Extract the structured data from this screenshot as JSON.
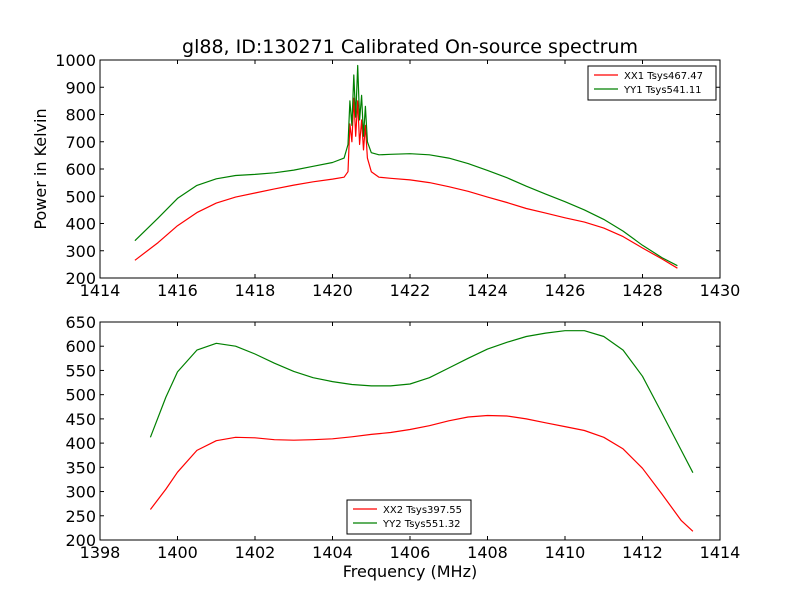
{
  "chart_data": [
    {
      "type": "line",
      "title": "gl88, ID:130271 Calibrated On-source spectrum",
      "xlabel": "",
      "ylabel": "Power in Kelvin",
      "xlim": [
        1414,
        1430
      ],
      "ylim": [
        200,
        1000
      ],
      "xticks": [
        "1414",
        "1416",
        "1418",
        "1420",
        "1422",
        "1424",
        "1426",
        "1428",
        "1430"
      ],
      "yticks": [
        "200",
        "300",
        "400",
        "500",
        "600",
        "700",
        "800",
        "900",
        "1000"
      ],
      "legend_position": "top-right",
      "series": [
        {
          "name": "XX1 Tsys467.47",
          "color": "#ff0000",
          "x": [
            1414.9,
            1415.5,
            1416.0,
            1416.5,
            1417.0,
            1417.5,
            1418.0,
            1418.5,
            1419.0,
            1419.5,
            1420.0,
            1420.3,
            1420.4,
            1420.45,
            1420.5,
            1420.55,
            1420.6,
            1420.65,
            1420.7,
            1420.75,
            1420.8,
            1420.85,
            1420.9,
            1421.0,
            1421.2,
            1421.5,
            1422.0,
            1422.5,
            1423.0,
            1423.5,
            1424.0,
            1424.5,
            1425.0,
            1425.5,
            1426.0,
            1426.5,
            1427.0,
            1427.5,
            1428.0,
            1428.5,
            1428.9
          ],
          "y": [
            265,
            330,
            392,
            440,
            475,
            497,
            512,
            527,
            541,
            553,
            563,
            570,
            590,
            765,
            700,
            860,
            720,
            850,
            690,
            780,
            670,
            760,
            640,
            590,
            570,
            566,
            560,
            550,
            535,
            518,
            497,
            477,
            455,
            438,
            421,
            405,
            383,
            352,
            310,
            270,
            236
          ]
        },
        {
          "name": "YY1 Tsys541.11",
          "color": "#008000",
          "x": [
            1414.9,
            1415.5,
            1416.0,
            1416.5,
            1417.0,
            1417.5,
            1418.0,
            1418.5,
            1419.0,
            1419.5,
            1420.0,
            1420.3,
            1420.4,
            1420.45,
            1420.5,
            1420.55,
            1420.6,
            1420.65,
            1420.7,
            1420.75,
            1420.8,
            1420.85,
            1420.9,
            1421.0,
            1421.2,
            1421.5,
            1422.0,
            1422.5,
            1423.0,
            1423.5,
            1424.0,
            1424.5,
            1425.0,
            1425.5,
            1426.0,
            1426.5,
            1427.0,
            1427.5,
            1428.0,
            1428.5,
            1428.9
          ],
          "y": [
            337,
            420,
            492,
            540,
            564,
            576,
            580,
            586,
            596,
            610,
            624,
            640,
            690,
            850,
            760,
            945,
            790,
            980,
            780,
            870,
            720,
            830,
            700,
            660,
            652,
            654,
            656,
            652,
            640,
            620,
            595,
            568,
            537,
            508,
            480,
            450,
            415,
            372,
            320,
            275,
            245
          ]
        }
      ]
    },
    {
      "type": "line",
      "title": "",
      "xlabel": "Frequency (MHz)",
      "ylabel": "",
      "xlim": [
        1398,
        1414
      ],
      "ylim": [
        200,
        650
      ],
      "xticks": [
        "1398",
        "1400",
        "1402",
        "1404",
        "1406",
        "1408",
        "1410",
        "1412",
        "1414"
      ],
      "yticks": [
        "200",
        "250",
        "300",
        "350",
        "400",
        "450",
        "500",
        "550",
        "600",
        "650"
      ],
      "legend_position": "lower-center",
      "series": [
        {
          "name": "XX2 Tsys397.55",
          "color": "#ff0000",
          "x": [
            1399.3,
            1399.7,
            1400.0,
            1400.5,
            1401.0,
            1401.5,
            1402.0,
            1402.5,
            1403.0,
            1403.5,
            1404.0,
            1404.5,
            1405.0,
            1405.5,
            1406.0,
            1406.5,
            1407.0,
            1407.5,
            1408.0,
            1408.5,
            1409.0,
            1409.5,
            1410.0,
            1410.5,
            1411.0,
            1411.5,
            1412.0,
            1412.5,
            1413.0,
            1413.3
          ],
          "y": [
            263,
            305,
            340,
            385,
            405,
            412,
            411,
            407,
            406,
            407,
            409,
            413,
            418,
            422,
            428,
            436,
            446,
            454,
            457,
            456,
            450,
            442,
            434,
            426,
            412,
            388,
            348,
            295,
            240,
            218
          ]
        },
        {
          "name": "YY2 Tsys551.32",
          "color": "#008000",
          "x": [
            1399.3,
            1399.7,
            1400.0,
            1400.5,
            1401.0,
            1401.5,
            1402.0,
            1402.5,
            1403.0,
            1403.5,
            1404.0,
            1404.5,
            1405.0,
            1405.5,
            1406.0,
            1406.5,
            1407.0,
            1407.5,
            1408.0,
            1408.5,
            1409.0,
            1409.5,
            1410.0,
            1410.5,
            1411.0,
            1411.5,
            1412.0,
            1412.5,
            1413.0,
            1413.3
          ],
          "y": [
            412,
            495,
            547,
            592,
            606,
            600,
            584,
            565,
            548,
            535,
            527,
            521,
            518,
            518,
            522,
            535,
            555,
            575,
            594,
            608,
            620,
            627,
            632,
            632,
            620,
            592,
            538,
            462,
            385,
            339
          ]
        }
      ]
    }
  ]
}
